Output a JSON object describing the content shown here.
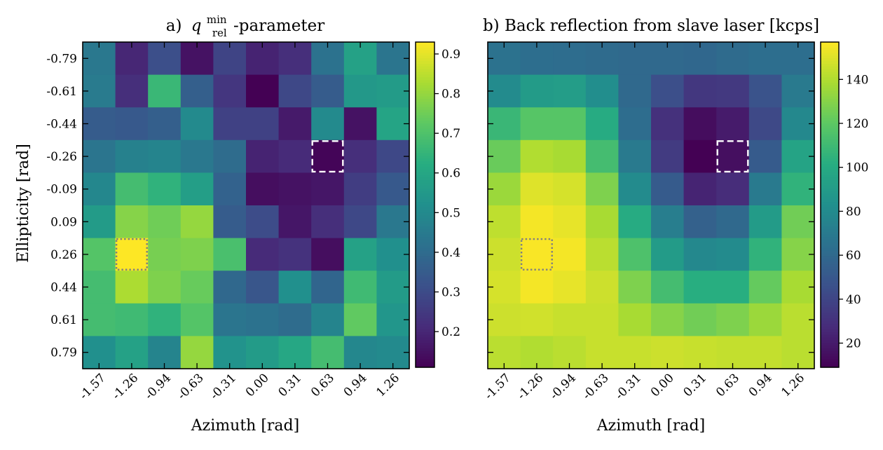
{
  "chart_data": [
    {
      "type": "heatmap",
      "title_prefix": "a)",
      "title_var": "q",
      "title_sup": "min",
      "title_sub": "rel",
      "title_suffix": "-parameter",
      "xlabel": "Azimuth [rad]",
      "ylabel": "Ellipticity [rad]",
      "x_ticks": [
        "-1.57",
        "-1.26",
        "-0.94",
        "-0.63",
        "-0.31",
        "0.00",
        "0.31",
        "0.63",
        "0.94",
        "1.26"
      ],
      "y_ticks": [
        "-0.79",
        "-0.61",
        "-0.44",
        "-0.26",
        "-0.09",
        "0.09",
        "0.26",
        "0.44",
        "0.61",
        "0.79"
      ],
      "colorbar": {
        "min": 0.11,
        "max": 0.93,
        "ticks": [
          0.2,
          0.3,
          0.4,
          0.5,
          0.6,
          0.7,
          0.8,
          0.9
        ],
        "tick_labels": [
          "0.2",
          "0.3",
          "0.4",
          "0.5",
          "0.6",
          "0.7",
          "0.8",
          "0.9"
        ]
      },
      "colormap": [
        "#440154",
        "#472c7a",
        "#3b518b",
        "#2c718e",
        "#21908d",
        "#27ad81",
        "#5cc863",
        "#aadc32",
        "#fde725"
      ],
      "values": [
        [
          0.44,
          0.2,
          0.31,
          0.15,
          0.28,
          0.19,
          0.22,
          0.42,
          0.58,
          0.43
        ],
        [
          0.45,
          0.22,
          0.66,
          0.36,
          0.24,
          0.11,
          0.29,
          0.35,
          0.55,
          0.56
        ],
        [
          0.35,
          0.34,
          0.36,
          0.5,
          0.27,
          0.27,
          0.17,
          0.5,
          0.15,
          0.59
        ],
        [
          0.43,
          0.47,
          0.48,
          0.44,
          0.4,
          0.19,
          0.21,
          0.12,
          0.22,
          0.29
        ],
        [
          0.49,
          0.68,
          0.64,
          0.57,
          0.37,
          0.14,
          0.15,
          0.16,
          0.26,
          0.34
        ],
        [
          0.56,
          0.78,
          0.75,
          0.8,
          0.35,
          0.3,
          0.16,
          0.22,
          0.29,
          0.44
        ],
        [
          0.71,
          0.93,
          0.76,
          0.77,
          0.69,
          0.21,
          0.23,
          0.14,
          0.58,
          0.52
        ],
        [
          0.68,
          0.83,
          0.77,
          0.74,
          0.39,
          0.33,
          0.52,
          0.38,
          0.67,
          0.56
        ],
        [
          0.68,
          0.67,
          0.64,
          0.71,
          0.43,
          0.42,
          0.4,
          0.48,
          0.73,
          0.54
        ],
        [
          0.52,
          0.58,
          0.48,
          0.8,
          0.53,
          0.56,
          0.6,
          0.68,
          0.49,
          0.5
        ]
      ],
      "highlight_dashed": {
        "row": 3,
        "col": 7
      },
      "highlight_dotted": {
        "row": 6,
        "col": 1
      }
    },
    {
      "type": "heatmap",
      "title": "b) Back reflection from slave laser [kcps]",
      "xlabel": "Azimuth [rad]",
      "ylabel": "",
      "x_ticks": [
        "-1.57",
        "-1.26",
        "-0.94",
        "-0.63",
        "-0.31",
        "0.00",
        "0.31",
        "0.63",
        "0.94",
        "1.26"
      ],
      "y_ticks": [
        "",
        "",
        "",
        "",
        "",
        "",
        "",
        "",
        "",
        ""
      ],
      "colorbar": {
        "min": 9,
        "max": 157,
        "ticks": [
          20,
          40,
          60,
          80,
          100,
          120,
          140
        ],
        "tick_labels": [
          "20",
          "40",
          "60",
          "80",
          "100",
          "120",
          "140"
        ]
      },
      "colormap": [
        "#440154",
        "#472c7a",
        "#3b518b",
        "#2c718e",
        "#21908d",
        "#27ad81",
        "#5cc863",
        "#aadc32",
        "#fde725"
      ],
      "values": [
        [
          65,
          63,
          62,
          61,
          60,
          60,
          59,
          61,
          63,
          63
        ],
        [
          80,
          90,
          91,
          82,
          60,
          45,
          33,
          34,
          47,
          70
        ],
        [
          108,
          118,
          118,
          100,
          62,
          30,
          14,
          20,
          42,
          78
        ],
        [
          123,
          140,
          138,
          112,
          70,
          35,
          9,
          15,
          52,
          95
        ],
        [
          135,
          150,
          148,
          128,
          80,
          52,
          24,
          28,
          70,
          105
        ],
        [
          143,
          155,
          152,
          138,
          100,
          72,
          55,
          60,
          90,
          125
        ],
        [
          146,
          156,
          155,
          142,
          115,
          90,
          78,
          80,
          105,
          130
        ],
        [
          148,
          155,
          152,
          146,
          128,
          112,
          102,
          102,
          122,
          138
        ],
        [
          146,
          147,
          145,
          145,
          138,
          130,
          125,
          128,
          135,
          142
        ],
        [
          142,
          140,
          142,
          145,
          145,
          146,
          145,
          144,
          144,
          142
        ]
      ],
      "highlight_dashed": {
        "row": 3,
        "col": 7
      },
      "highlight_dotted": {
        "row": 6,
        "col": 1
      }
    }
  ]
}
